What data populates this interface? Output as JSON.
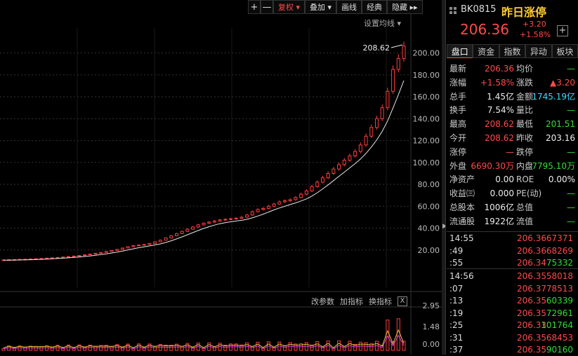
{
  "toolbar": {
    "plus": "+",
    "minus": "—",
    "adjust": "复权",
    "overlay": "叠加",
    "draw": "画线",
    "classic": "经典",
    "hide": "隐藏"
  },
  "chart": {
    "ma_setting": "设置均线",
    "last_high_label": "208.62",
    "y_ticks": [
      "200.00",
      "180.00",
      "160.00",
      "140.00",
      "120.00",
      "100.00",
      "80.00",
      "60.00",
      "40.00",
      "20.00"
    ],
    "sub_toolbar": {
      "params": "改参数",
      "add_indicator": "加指标",
      "switch_indicator": "换指标",
      "close": "X"
    },
    "sub_ticks": [
      "2.95",
      "1.48",
      "0.00"
    ]
  },
  "chart_data": {
    "type": "candlestick",
    "closes": [
      11,
      11.2,
      11.3,
      11.5,
      11.6,
      11.8,
      12,
      12.3,
      12.6,
      12.9,
      13.2,
      13.6,
      14,
      14.5,
      15,
      15.6,
      16.3,
      17,
      17.8,
      18.6,
      19.5,
      20.6,
      21.8,
      23,
      24,
      24.5,
      25,
      26,
      27.5,
      29,
      31,
      33,
      35,
      37,
      39,
      41,
      43,
      44.5,
      45.5,
      46.5,
      47.5,
      48,
      48.5,
      49,
      50,
      52,
      55,
      57,
      58,
      60,
      62,
      64,
      65,
      66,
      68,
      71,
      74,
      78,
      82,
      86,
      90,
      94,
      98,
      102,
      106,
      110,
      116,
      124,
      132,
      140,
      150,
      165,
      185,
      195,
      206.36
    ],
    "vol_ma": [
      0.3,
      0.4,
      0.5,
      0.6
    ],
    "ylim": [
      0,
      210
    ]
  },
  "panel": {
    "code": "BK0815",
    "name": "昨日涨停",
    "price": "206.36",
    "change": "+3.20",
    "change_pct": "+1.58%",
    "add": "+",
    "tabs": [
      "盘口",
      "资金",
      "指数",
      "异动",
      "板块"
    ],
    "quotes": [
      {
        "l1": "最新",
        "v1": "206.36",
        "c1": "red",
        "l2": "均价",
        "v2": "—",
        "c2": "green"
      },
      {
        "l1": "涨幅",
        "v1": "+1.58%",
        "c1": "red",
        "l2": "涨跌",
        "v2": "▲3.20",
        "c2": "red"
      },
      {
        "l1": "总手",
        "v1": "1.45亿",
        "c1": "white",
        "l2": "金额",
        "v2": "1745.19亿",
        "c2": "cyan"
      },
      {
        "l1": "换手",
        "v1": "7.54%",
        "c1": "white",
        "l2": "量比",
        "v2": "—",
        "c2": "green"
      },
      {
        "l1": "最高",
        "v1": "208.62",
        "c1": "red",
        "l2": "最低",
        "v2": "201.51",
        "c2": "green"
      },
      {
        "l1": "今开",
        "v1": "208.62",
        "c1": "red",
        "l2": "昨收",
        "v2": "203.16",
        "c2": "white"
      },
      {
        "l1": "涨停",
        "v1": "—",
        "c1": "red",
        "l2": "跌停",
        "v2": "—",
        "c2": "green"
      },
      {
        "l1": "外盘",
        "v1": "6690.30万",
        "c1": "red",
        "l2": "内盘",
        "v2": "7795.10万",
        "c2": "green"
      },
      {
        "l1": "净资产",
        "v1": "0.00",
        "c1": "white",
        "l2": "ROE",
        "v2": "0.00%",
        "c2": "white"
      },
      {
        "l1": "收益㈢",
        "v1": "0.000",
        "c1": "white",
        "l2": "PE(动)",
        "v2": "—",
        "c2": "green"
      },
      {
        "l1": "总股本",
        "v1": "1006亿",
        "c1": "white",
        "l2": "总值",
        "v2": "—",
        "c2": "green"
      },
      {
        "l1": "流通股",
        "v1": "1922亿",
        "c1": "white",
        "l2": "流值",
        "v2": "—",
        "c2": "green"
      }
    ],
    "ticks": [
      {
        "t": "14:55",
        "p": "206.36",
        "pc": "red",
        "v": "67371",
        "vc": "red"
      },
      {
        "t": ":49",
        "p": "206.36",
        "pc": "red",
        "v": "68269",
        "vc": "red"
      },
      {
        "t": ":55",
        "p": "206.34",
        "pc": "red",
        "v": "75332",
        "vc": "green"
      },
      {
        "t": "14:56",
        "p": "206.35",
        "pc": "red",
        "v": "58018",
        "vc": "red"
      },
      {
        "t": ":07",
        "p": "206.37",
        "pc": "red",
        "v": "78513",
        "vc": "red"
      },
      {
        "t": ":13",
        "p": "206.35",
        "pc": "red",
        "v": "60339",
        "vc": "green"
      },
      {
        "t": ":19",
        "p": "206.35",
        "pc": "red",
        "v": "72961",
        "vc": "green"
      },
      {
        "t": ":25",
        "p": "206.33",
        "pc": "red",
        "v": "101764",
        "vc": "green"
      },
      {
        "t": ":31",
        "p": "206.35",
        "pc": "red",
        "v": "68453",
        "vc": "red"
      },
      {
        "t": ":37",
        "p": "206.35",
        "pc": "red",
        "v": "90160",
        "vc": "green"
      }
    ]
  }
}
